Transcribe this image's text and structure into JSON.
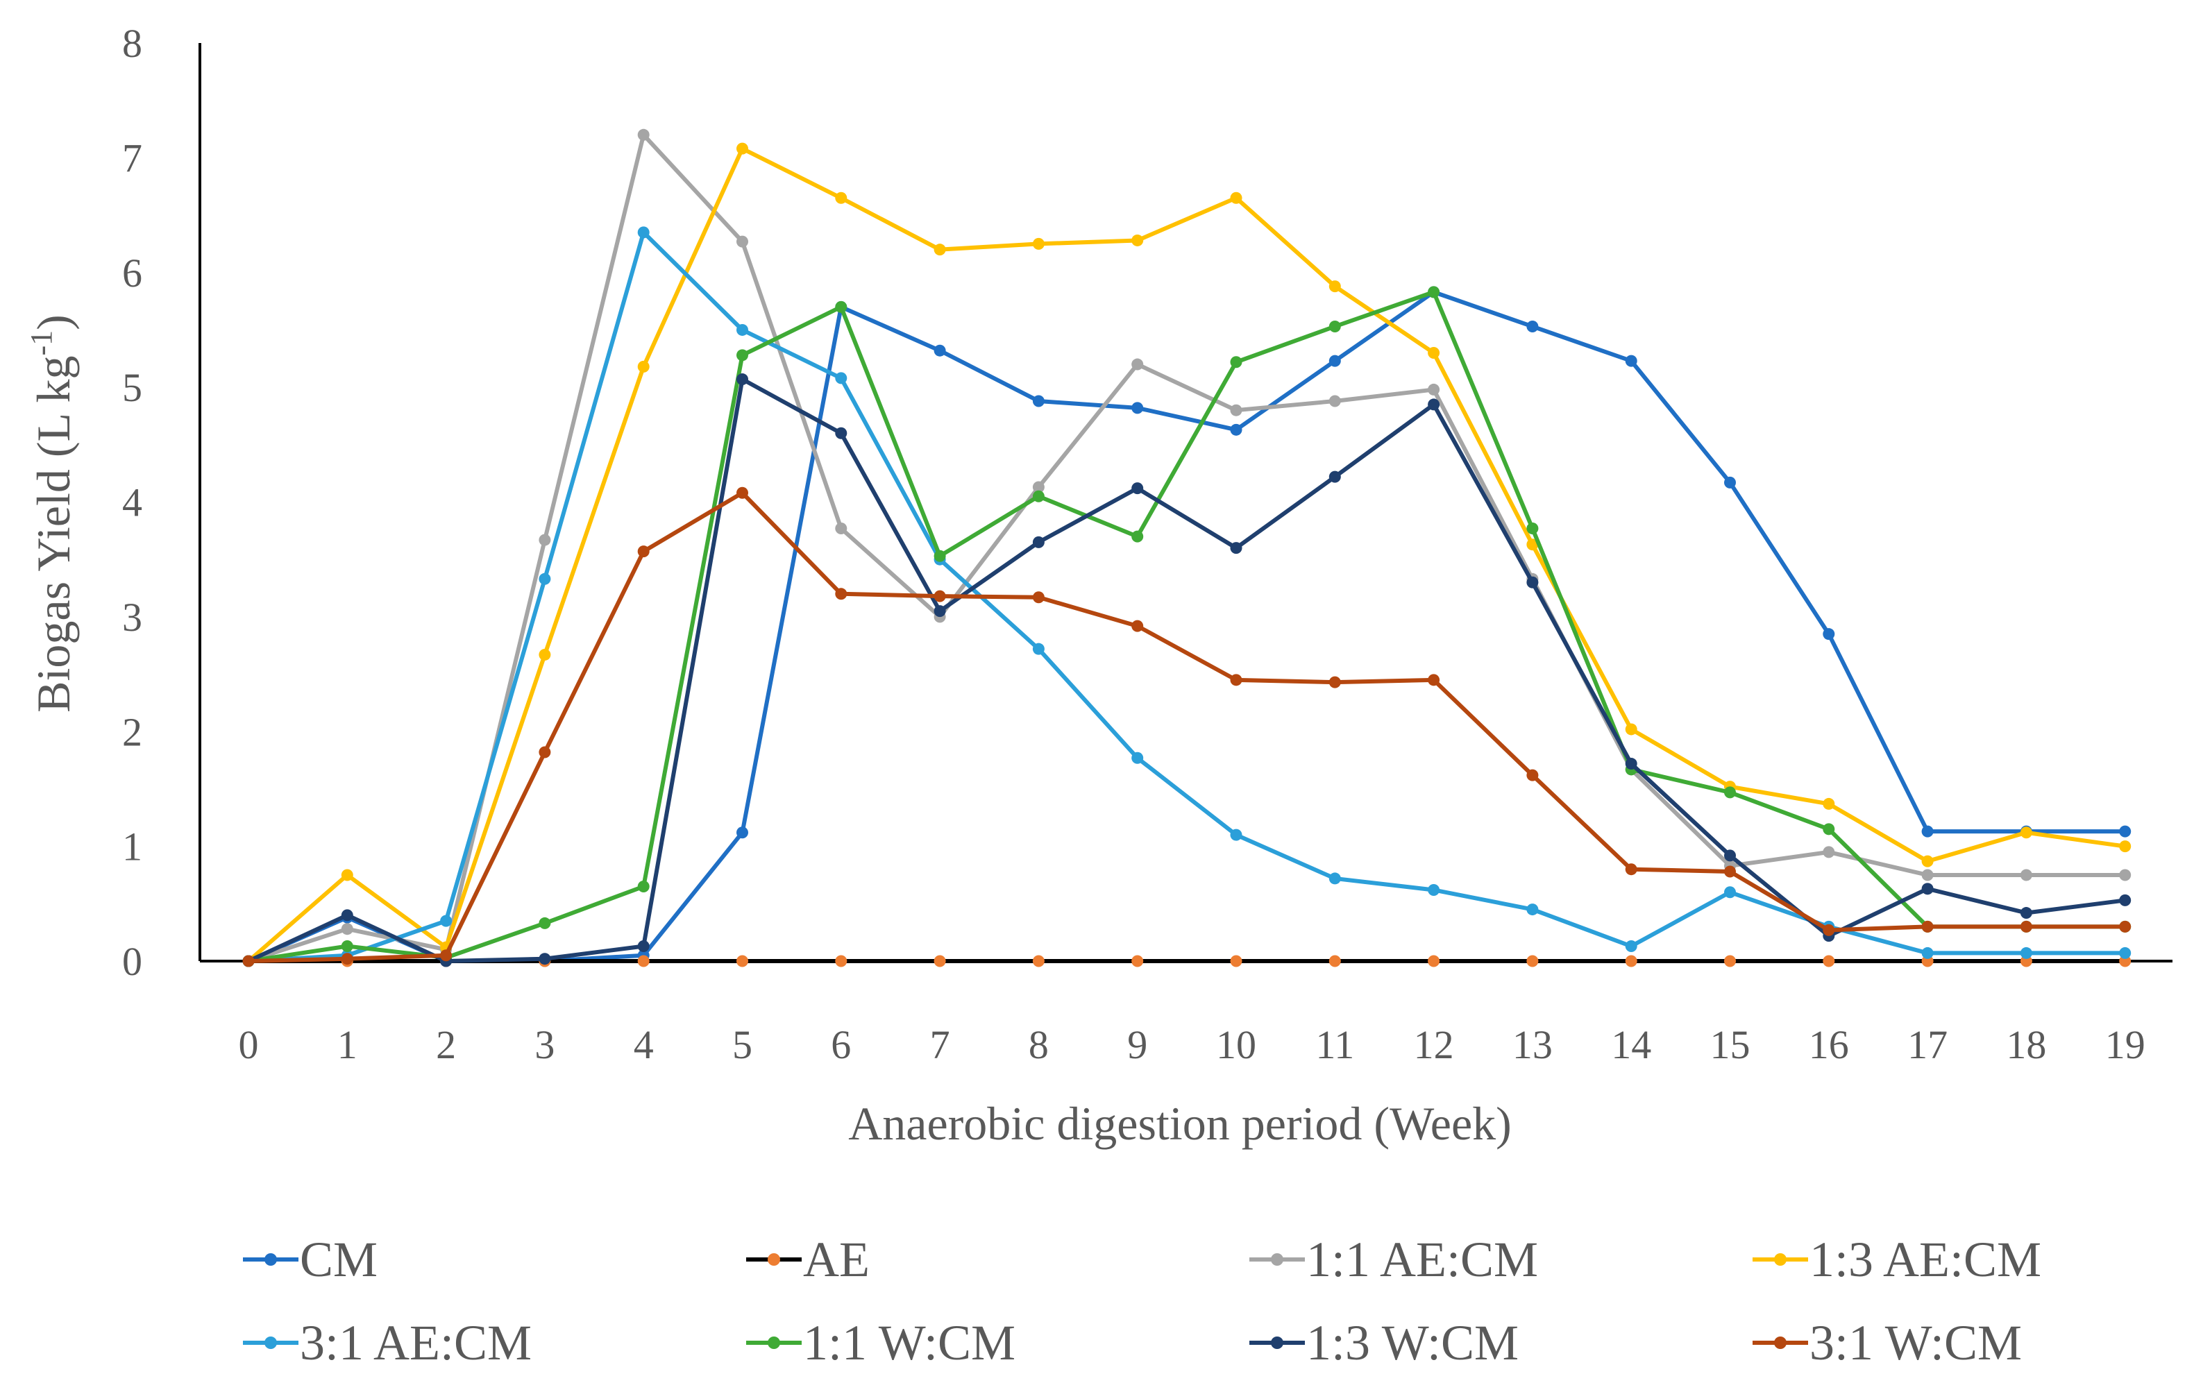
{
  "chart_data": {
    "type": "line",
    "title": "",
    "xlabel": "Anaerobic digestion period (Week)",
    "ylabel": "Biogas  Yield  (L kg",
    "ylabel_sup": "-1",
    "ylabel_close": ")",
    "ylim": [
      0,
      8
    ],
    "yticks": [
      "0",
      "1",
      "2",
      "3",
      "4",
      "5",
      "6",
      "7",
      "8"
    ],
    "categories": [
      "0",
      "1",
      "2",
      "3",
      "4",
      "5",
      "6",
      "7",
      "8",
      "9",
      "10",
      "11",
      "12",
      "13",
      "14",
      "15",
      "16",
      "17",
      "18",
      "19"
    ],
    "grid": false,
    "legend_position": "bottom",
    "series": [
      {
        "name": "CM",
        "color": "#1f6fc5",
        "marker_color": "#1f6fc5",
        "values": [
          0,
          0.38,
          0,
          0,
          0.05,
          1.12,
          5.7,
          5.32,
          4.88,
          4.82,
          4.63,
          5.23,
          5.83,
          5.53,
          5.23,
          4.17,
          2.85,
          1.13,
          1.13,
          1.13
        ]
      },
      {
        "name": "AE",
        "color": "#000000",
        "marker_color": "#ed7d31",
        "values": [
          0,
          0,
          0,
          0,
          0,
          0,
          0,
          0,
          0,
          0,
          0,
          0,
          0,
          0,
          0,
          0,
          0,
          0,
          0,
          0
        ]
      },
      {
        "name": "1:1 AE:CM",
        "color": "#a5a5a5",
        "marker_color": "#a5a5a5",
        "values": [
          0,
          0.28,
          0.1,
          3.67,
          7.2,
          6.27,
          3.77,
          3.0,
          4.13,
          5.2,
          4.8,
          4.88,
          4.98,
          3.33,
          1.67,
          0.83,
          0.95,
          0.75,
          0.75,
          0.75
        ]
      },
      {
        "name": "1:3 AE:CM",
        "color": "#ffc000",
        "marker_color": "#ffc000",
        "values": [
          0,
          0.75,
          0.12,
          2.67,
          5.18,
          7.08,
          6.65,
          6.2,
          6.25,
          6.28,
          6.65,
          5.88,
          5.3,
          3.63,
          2.02,
          1.52,
          1.37,
          0.87,
          1.12,
          1.0
        ]
      },
      {
        "name": "3:1 AE:CM",
        "color": "#2b9fd9",
        "marker_color": "#2b9fd9",
        "values": [
          0,
          0.05,
          0.35,
          3.33,
          6.35,
          5.5,
          5.08,
          3.5,
          2.72,
          1.77,
          1.1,
          0.72,
          0.62,
          0.45,
          0.13,
          0.6,
          0.3,
          0.07,
          0.07,
          0.07
        ]
      },
      {
        "name": "1:1 W:CM",
        "color": "#3faa35",
        "marker_color": "#3faa35",
        "values": [
          0,
          0.13,
          0.03,
          0.33,
          0.65,
          5.28,
          5.7,
          3.53,
          4.05,
          3.7,
          5.22,
          5.53,
          5.83,
          3.77,
          1.67,
          1.47,
          1.15,
          0.3,
          0.3,
          0.3
        ]
      },
      {
        "name": "1:3 W:CM",
        "color": "#1f3f6e",
        "marker_color": "#1f3f6e",
        "values": [
          0,
          0.4,
          0,
          0.02,
          0.13,
          5.07,
          4.6,
          3.05,
          3.65,
          4.12,
          3.6,
          4.22,
          4.85,
          3.3,
          1.72,
          0.92,
          0.22,
          0.63,
          0.42,
          0.53
        ]
      },
      {
        "name": "3:1 W:CM",
        "color": "#b5470f",
        "marker_color": "#b5470f",
        "values": [
          0,
          0.02,
          0.05,
          1.82,
          3.57,
          4.08,
          3.2,
          3.18,
          3.17,
          2.92,
          2.45,
          2.43,
          2.45,
          1.62,
          0.8,
          0.78,
          0.27,
          0.3,
          0.3,
          0.3
        ]
      }
    ]
  }
}
